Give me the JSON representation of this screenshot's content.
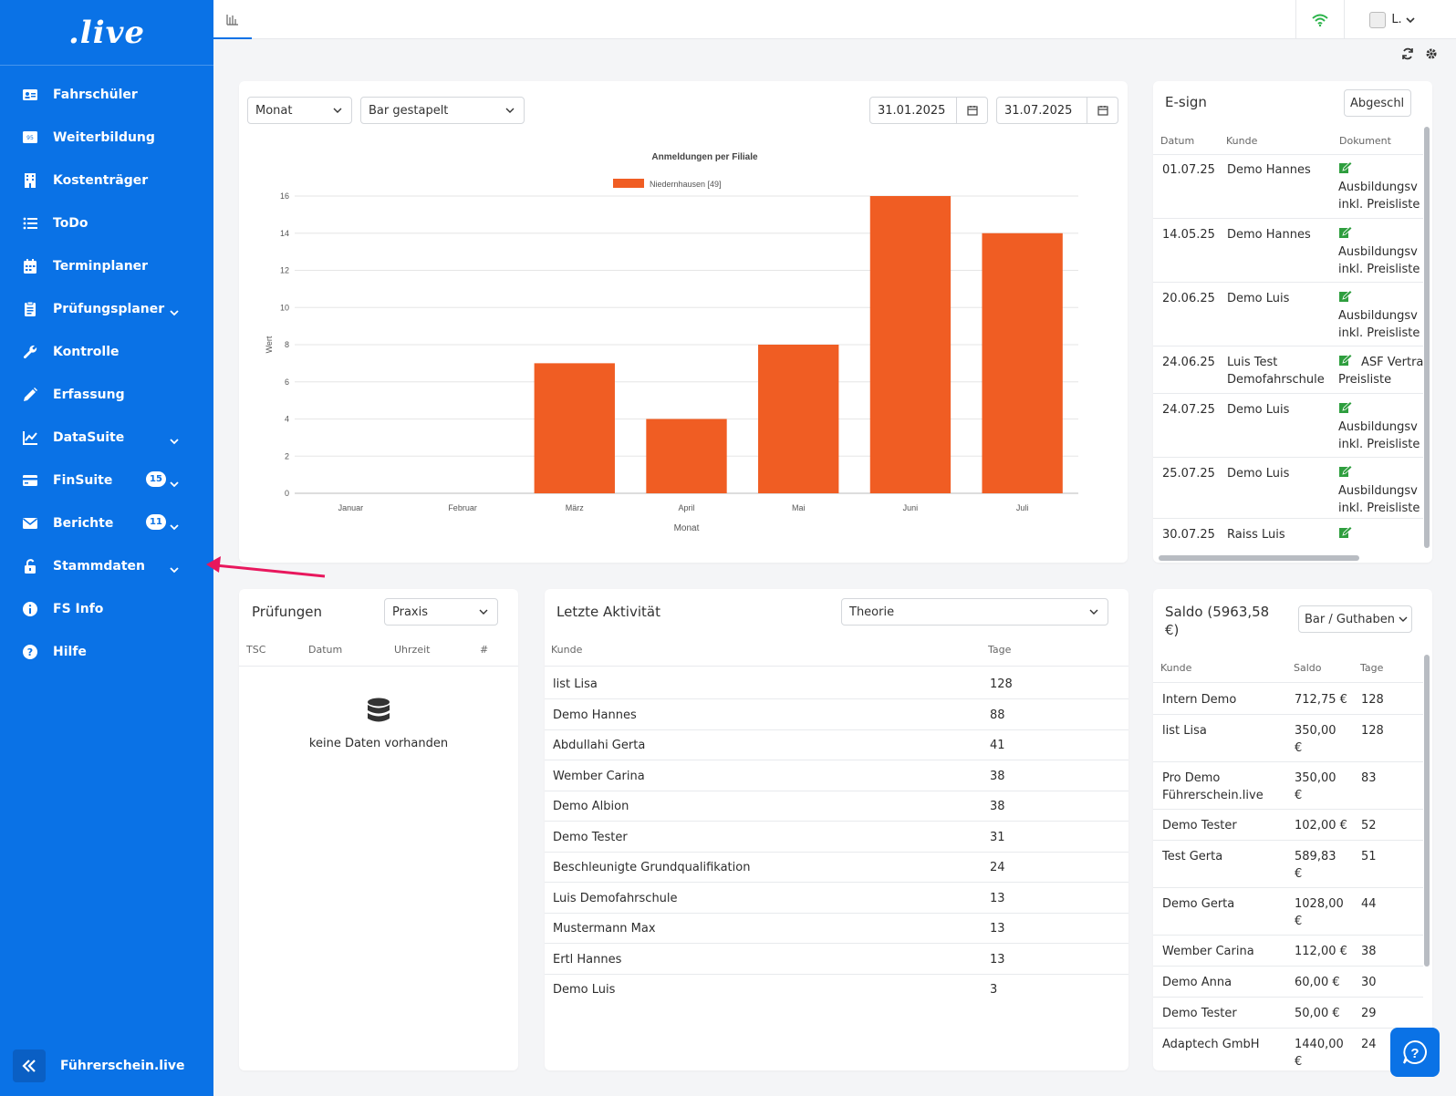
{
  "brand": {
    "logo_text": ".live",
    "footer_label": "Führerschein.live"
  },
  "sidebar": {
    "items": [
      {
        "label": "Fahrschüler",
        "icon": "id-card-icon"
      },
      {
        "label": "Weiterbildung",
        "icon": "certificate-95-icon"
      },
      {
        "label": "Kostenträger",
        "icon": "building-icon"
      },
      {
        "label": "ToDo",
        "icon": "list-icon"
      },
      {
        "label": "Terminplaner",
        "icon": "calendar-icon"
      },
      {
        "label": "Prüfungsplaner",
        "icon": "clipboard-icon"
      },
      {
        "label": "Kontrolle",
        "icon": "wrench-icon"
      },
      {
        "label": "Erfassung",
        "icon": "pencil-icon"
      },
      {
        "label": "DataSuite",
        "icon": "chart-line-icon"
      },
      {
        "label": "FinSuite",
        "icon": "credit-card-icon",
        "badge": "15"
      },
      {
        "label": "Berichte",
        "icon": "envelope-icon",
        "badge": "11"
      },
      {
        "label": "Stammdaten",
        "icon": "unlock-icon"
      },
      {
        "label": "FS Info",
        "icon": "info-icon"
      },
      {
        "label": "Hilfe",
        "icon": "question-icon"
      }
    ]
  },
  "topbar": {
    "user_label": "L."
  },
  "chart_card": {
    "period_select": "Monat",
    "type_select": "Bar gestapelt",
    "date_from": "31.01.2025",
    "date_to": "31.07.2025"
  },
  "chart_data": {
    "type": "bar",
    "title": "Anmeldungen per Filiale",
    "xlabel": "Monat",
    "ylabel": "Wert",
    "categories": [
      "Januar",
      "Februar",
      "März",
      "April",
      "Mai",
      "Juni",
      "Juli"
    ],
    "series": [
      {
        "name": "Niedernhausen [49]",
        "values": [
          0,
          0,
          7,
          4,
          8,
          16,
          14
        ],
        "color": "#f05d23"
      }
    ],
    "ylim": [
      0,
      16
    ],
    "yticks": [
      0,
      2,
      4,
      6,
      8,
      10,
      12,
      14,
      16
    ],
    "grid": true,
    "legend": "top"
  },
  "esign": {
    "title": "E-sign",
    "filter_button": "Abgeschl",
    "headers": [
      "Datum",
      "Kunde",
      "Dokument"
    ],
    "rows": [
      {
        "date": "01.07.25",
        "customer": "Demo Hannes",
        "doc1": "Ausbildungsv",
        "doc2": "inkl. Preisliste"
      },
      {
        "date": "14.05.25",
        "customer": "Demo Hannes",
        "doc1": "Ausbildungsv",
        "doc2": "inkl. Preisliste"
      },
      {
        "date": "20.06.25",
        "customer": "Demo Luis",
        "doc1": "Ausbildungsv",
        "doc2": "inkl. Preisliste"
      },
      {
        "date": "24.06.25",
        "customer": "Luis Test",
        "customer2": "Demofahrschule",
        "doc1": "ASF Vertra",
        "doc2": "Preisliste",
        "inline": true
      },
      {
        "date": "24.07.25",
        "customer": "Demo Luis",
        "doc1": "Ausbildungsv",
        "doc2": "inkl. Preisliste"
      },
      {
        "date": "25.07.25",
        "customer": "Demo Luis",
        "doc1": "Ausbildungsv",
        "doc2": "inkl. Preisliste"
      },
      {
        "date": "30.07.25",
        "customer": "Raiss Luis",
        "doc1": "",
        "doc2": ""
      }
    ]
  },
  "pruefungen": {
    "title": "Prüfungen",
    "select": "Praxis",
    "headers": [
      "TSC",
      "Datum",
      "Uhrzeit",
      "#"
    ],
    "empty_text": "keine Daten vorhanden"
  },
  "activity": {
    "title": "Letzte Aktivität",
    "select": "Theorie",
    "headers": [
      "Kunde",
      "Tage"
    ],
    "rows": [
      {
        "name": "list Lisa",
        "days": "128"
      },
      {
        "name": "Demo Hannes",
        "days": "88"
      },
      {
        "name": "Abdullahi Gerta",
        "days": "41"
      },
      {
        "name": "Wember Carina",
        "days": "38"
      },
      {
        "name": "Demo Albion",
        "days": "38"
      },
      {
        "name": "Demo Tester",
        "days": "31"
      },
      {
        "name": "Beschleunigte Grundqualifikation",
        "days": "24"
      },
      {
        "name": "Luis Demofahrschule",
        "days": "13"
      },
      {
        "name": "Mustermann Max",
        "days": "13"
      },
      {
        "name": "Ertl Hannes",
        "days": "13"
      },
      {
        "name": "Demo Luis",
        "days": "3"
      }
    ]
  },
  "saldo": {
    "title_line1": "Saldo (5963,58",
    "title_line2": "€)",
    "select": "Bar / Guthaben",
    "headers": [
      "Kunde",
      "Saldo",
      "Tage"
    ],
    "rows": [
      {
        "name": "Intern Demo",
        "name2": "",
        "saldo": "712,75 €",
        "saldo2": "",
        "days": "128"
      },
      {
        "name": "list Lisa",
        "name2": "",
        "saldo": "350,00",
        "saldo2": "€",
        "days": "128"
      },
      {
        "name": "Pro Demo",
        "name2": "Führerschein.live",
        "saldo": "350,00",
        "saldo2": "€",
        "days": "83"
      },
      {
        "name": "Demo Tester",
        "name2": "",
        "saldo": "102,00 €",
        "saldo2": "",
        "days": "52"
      },
      {
        "name": "Test Gerta",
        "name2": "",
        "saldo": "589,83",
        "saldo2": "€",
        "days": "51"
      },
      {
        "name": "Demo Gerta",
        "name2": "",
        "saldo": "1028,00",
        "saldo2": "€",
        "days": "44"
      },
      {
        "name": "Wember Carina",
        "name2": "",
        "saldo": "112,00 €",
        "saldo2": "",
        "days": "38"
      },
      {
        "name": "Demo Anna",
        "name2": "",
        "saldo": "60,00 €",
        "saldo2": "",
        "days": "30"
      },
      {
        "name": "Demo Tester",
        "name2": "",
        "saldo": "50,00 €",
        "saldo2": "",
        "days": "29"
      },
      {
        "name": "Adaptech GmbH",
        "name2": "",
        "saldo": "1440,00",
        "saldo2": "€",
        "days": "24"
      }
    ]
  },
  "colors": {
    "primary": "#0a72e6",
    "bar": "#f05d23",
    "wifi": "#2bb34a",
    "esign_icon": "#2e9e3e",
    "arrow": "#e8175d"
  }
}
